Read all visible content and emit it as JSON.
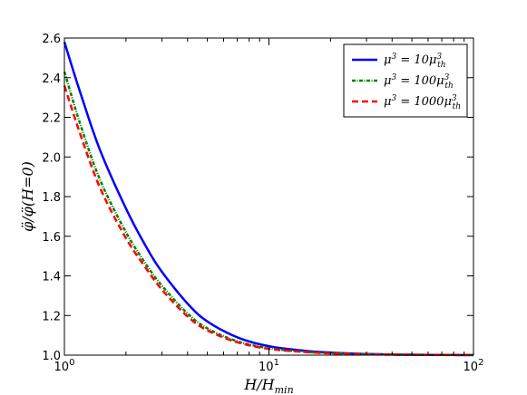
{
  "chart_data": {
    "type": "line",
    "xscale": "log",
    "xlim": [
      1,
      100
    ],
    "ylim": [
      1.0,
      2.6
    ],
    "xlabel": "H/H_min",
    "ylabel": "φ̈/φ̈(H=0)",
    "x_ticks": [
      1,
      10,
      100
    ],
    "x_tick_labels": [
      {
        "base": "10",
        "exp": "0"
      },
      {
        "base": "10",
        "exp": "1"
      },
      {
        "base": "10",
        "exp": "2"
      }
    ],
    "y_ticks": [
      1.0,
      1.2,
      1.4,
      1.6,
      1.8,
      2.0,
      2.2,
      2.4,
      2.6
    ],
    "y_tick_labels": [
      "1.0",
      "1.2",
      "1.4",
      "1.6",
      "1.8",
      "2.0",
      "2.2",
      "2.4",
      "2.6"
    ],
    "grid": false,
    "legend_position": "top-right",
    "x": [
      1,
      1.2,
      1.5,
      2,
      2.5,
      3,
      4,
      5,
      7,
      10,
      15,
      20,
      30,
      50,
      100
    ],
    "series": [
      {
        "name": "μ³ = 10μ³_th",
        "color": "#0000ff",
        "style": "solid",
        "values": [
          2.58,
          2.32,
          2.03,
          1.74,
          1.55,
          1.42,
          1.26,
          1.17,
          1.09,
          1.045,
          1.022,
          1.013,
          1.006,
          1.002,
          1.0005
        ]
      },
      {
        "name": "μ³ = 100μ³_th",
        "color": "#008000",
        "style": "dashdot",
        "values": [
          2.43,
          2.16,
          1.88,
          1.62,
          1.46,
          1.35,
          1.21,
          1.135,
          1.07,
          1.035,
          1.017,
          1.01,
          1.005,
          1.002,
          1.0005
        ]
      },
      {
        "name": "μ³ = 1000μ³_th",
        "color": "#ff0000",
        "style": "dashed",
        "values": [
          2.36,
          2.11,
          1.84,
          1.59,
          1.44,
          1.33,
          1.195,
          1.125,
          1.065,
          1.032,
          1.016,
          1.009,
          1.004,
          1.0015,
          1.0004
        ]
      }
    ],
    "legend_items": [
      {
        "base": "μ",
        "sup": "3",
        "eq": " = ",
        "coef": "10",
        "mu": "μ",
        "sup2": "3",
        "sub2": "th"
      },
      {
        "base": "μ",
        "sup": "3",
        "eq": " = ",
        "coef": "100",
        "mu": "μ",
        "sup2": "3",
        "sub2": "th"
      },
      {
        "base": "μ",
        "sup": "3",
        "eq": " = ",
        "coef": "1000",
        "mu": "μ",
        "sup2": "3",
        "sub2": "th"
      }
    ],
    "axis_label_parts": {
      "x_main": "H/H",
      "x_sub": "min",
      "y_text": "φ̈/φ̈(H=0)"
    }
  }
}
